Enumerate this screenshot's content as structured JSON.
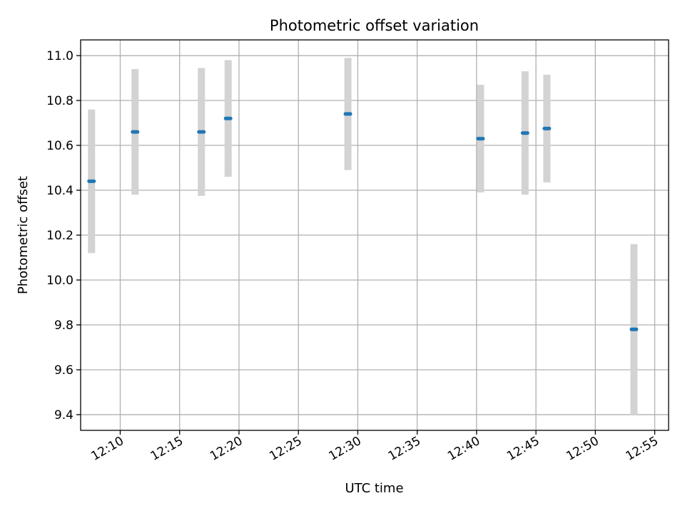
{
  "chart_data": {
    "type": "scatter",
    "title": "Photometric offset variation",
    "xlabel": "UTC time",
    "ylabel": "Photometric offset",
    "x_ticks": [
      "12:10",
      "12:15",
      "12:20",
      "12:25",
      "12:30",
      "12:35",
      "12:40",
      "12:45",
      "12:50",
      "12:55"
    ],
    "y_ticks": [
      "9.4",
      "9.6",
      "9.8",
      "10.0",
      "10.2",
      "10.4",
      "10.6",
      "10.8",
      "11.0"
    ],
    "xlim": [
      "12:06:40",
      "12:56:10"
    ],
    "ylim": [
      9.33,
      11.07
    ],
    "grid": true,
    "colors": {
      "point": "#1f77b4",
      "errorbar": "#d3d3d3"
    },
    "points": [
      {
        "time": "12:07:35",
        "value": 10.44,
        "error": 0.32
      },
      {
        "time": "12:11:15",
        "value": 10.66,
        "error": 0.28
      },
      {
        "time": "12:16:50",
        "value": 10.66,
        "error": 0.285
      },
      {
        "time": "12:19:05",
        "value": 10.72,
        "error": 0.26
      },
      {
        "time": "12:29:10",
        "value": 10.74,
        "error": 0.25
      },
      {
        "time": "12:40:20",
        "value": 10.63,
        "error": 0.24
      },
      {
        "time": "12:44:05",
        "value": 10.655,
        "error": 0.275
      },
      {
        "time": "12:45:55",
        "value": 10.675,
        "error": 0.24
      },
      {
        "time": "12:53:15",
        "value": 9.78,
        "error": 0.38
      }
    ]
  }
}
